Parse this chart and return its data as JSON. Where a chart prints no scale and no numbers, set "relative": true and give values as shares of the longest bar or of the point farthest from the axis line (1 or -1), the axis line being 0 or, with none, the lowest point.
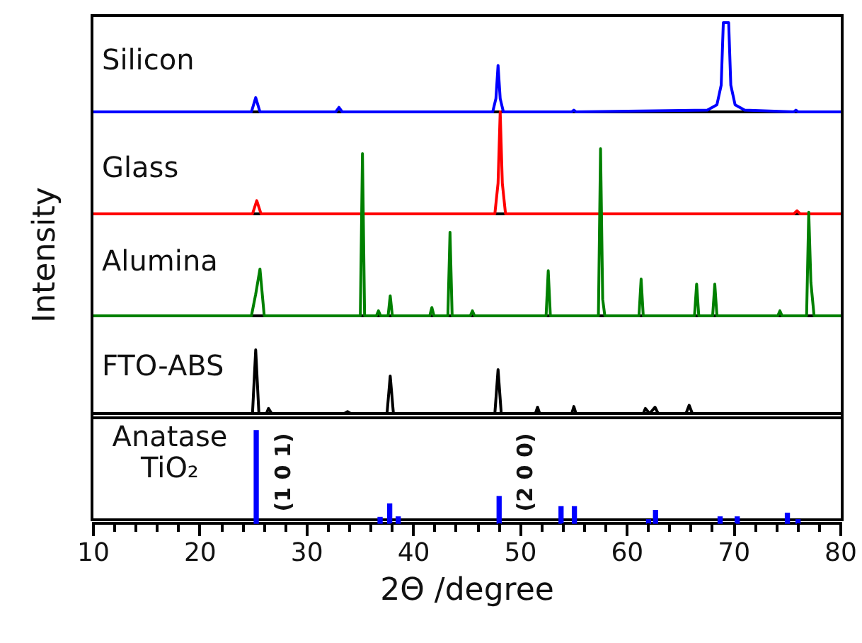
{
  "chart_data": [
    {
      "type": "line",
      "relative": true,
      "tick_labels": false,
      "xlim": [
        10,
        80
      ],
      "series": [
        {
          "name": "Silicon",
          "color": "#0000ff",
          "x": [
            10,
            24.8,
            25.2,
            25.6,
            32.7,
            33.0,
            33.3,
            47.4,
            47.7,
            47.9,
            48.1,
            48.4,
            54.8,
            55.0,
            55.2,
            67.5,
            68.4,
            68.8,
            69.0,
            69.5,
            69.7,
            70.1,
            71.0,
            75.6,
            75.8,
            76.0,
            80
          ],
          "values": [
            0,
            0,
            0.16,
            0,
            0,
            0.05,
            0,
            0,
            0.15,
            0.52,
            0.15,
            0,
            0,
            0.02,
            0,
            0.02,
            0.08,
            0.3,
            1,
            1,
            0.3,
            0.08,
            0.02,
            0,
            0.02,
            0,
            0
          ]
        }
      ]
    },
    {
      "type": "line",
      "relative": true,
      "tick_labels": false,
      "xlim": [
        10,
        80
      ],
      "series": [
        {
          "name": "Glass",
          "color": "#ff0000",
          "x": [
            10,
            24.9,
            25.3,
            25.7,
            47.6,
            47.9,
            48.1,
            48.3,
            48.6,
            75.6,
            75.9,
            76.2,
            80
          ],
          "values": [
            0,
            0,
            0.13,
            0,
            0,
            0.3,
            1,
            0.3,
            0,
            0,
            0.03,
            0,
            0
          ]
        }
      ]
    },
    {
      "type": "line",
      "relative": true,
      "tick_labels": false,
      "xlim": [
        10,
        80
      ],
      "ylabel": "Intensity",
      "series": [
        {
          "name": "Alumina",
          "color": "#008000",
          "x": [
            10,
            24.8,
            25.2,
            25.6,
            26.0,
            35.0,
            35.2,
            35.4,
            36.5,
            36.7,
            36.9,
            37.6,
            37.8,
            38.0,
            41.5,
            41.7,
            41.9,
            43.2,
            43.4,
            43.6,
            45.3,
            45.5,
            45.7,
            52.4,
            52.6,
            52.8,
            57.3,
            57.5,
            57.7,
            57.9,
            61.1,
            61.3,
            61.5,
            66.3,
            66.5,
            66.7,
            68.0,
            68.2,
            68.4,
            74.1,
            74.3,
            74.5,
            76.8,
            77.0,
            77.2,
            77.5,
            80
          ],
          "values": [
            0,
            0,
            0.13,
            0.28,
            0,
            0,
            0.97,
            0,
            0,
            0.03,
            0,
            0,
            0.12,
            0,
            0,
            0.05,
            0,
            0,
            0.5,
            0,
            0,
            0.03,
            0,
            0,
            0.27,
            0,
            0,
            1,
            0.1,
            0,
            0,
            0.22,
            0,
            0,
            0.19,
            0,
            0,
            0.19,
            0,
            0,
            0.03,
            0,
            0,
            0.62,
            0.2,
            0,
            0
          ]
        }
      ]
    },
    {
      "type": "line",
      "relative": true,
      "tick_labels": false,
      "xlim": [
        10,
        80
      ],
      "series": [
        {
          "name": "FTO-ABS",
          "color": "#000000",
          "x": [
            10,
            24.9,
            25.2,
            25.5,
            26.2,
            26.4,
            26.7,
            33.5,
            33.8,
            34.1,
            37.5,
            37.8,
            38.1,
            47.6,
            47.9,
            48.2,
            51.4,
            51.6,
            51.8,
            54.8,
            55.0,
            55.2,
            61.5,
            61.7,
            62.1,
            62.6,
            62.9,
            65.5,
            65.8,
            66.1,
            80
          ],
          "values": [
            0,
            0,
            1,
            0,
            0,
            0.08,
            0,
            0,
            0.03,
            0,
            0,
            0.59,
            0,
            0,
            0.69,
            0,
            0,
            0.1,
            0,
            0,
            0.11,
            0,
            0,
            0.08,
            0,
            0.1,
            0,
            0,
            0.13,
            0,
            0
          ]
        }
      ]
    },
    {
      "type": "bar",
      "relative": true,
      "tick_labels": "x",
      "xlim": [
        10,
        80
      ],
      "xlabel": "2Θ /degree",
      "xticks": [
        10,
        {
          "value": 12,
          "label": null
        },
        {
          "value": 14,
          "label": null
        },
        {
          "value": 16,
          "label": null
        },
        {
          "value": 18,
          "label": null
        },
        20,
        {
          "value": 22,
          "label": null
        },
        {
          "value": 24,
          "label": null
        },
        {
          "value": 26,
          "label": null
        },
        {
          "value": 28,
          "label": null
        },
        30,
        {
          "value": 32,
          "label": null
        },
        {
          "value": 34,
          "label": null
        },
        {
          "value": 36,
          "label": null
        },
        {
          "value": 38,
          "label": null
        },
        40,
        {
          "value": 42,
          "label": null
        },
        {
          "value": 44,
          "label": null
        },
        {
          "value": 46,
          "label": null
        },
        {
          "value": 48,
          "label": null
        },
        50,
        {
          "value": 52,
          "label": null
        },
        {
          "value": 54,
          "label": null
        },
        {
          "value": 56,
          "label": null
        },
        {
          "value": 58,
          "label": null
        },
        60,
        {
          "value": 62,
          "label": null
        },
        {
          "value": 64,
          "label": null
        },
        {
          "value": 66,
          "label": null
        },
        {
          "value": 68,
          "label": null
        },
        70,
        {
          "value": 72,
          "label": null
        },
        {
          "value": 74,
          "label": null
        },
        {
          "value": 76,
          "label": null
        },
        {
          "value": 78,
          "label": null
        },
        80
      ],
      "annotations": [
        "(1 0 1)",
        "(2 0 0)"
      ],
      "series": [
        {
          "name": "Anatase TiO₂",
          "color": "#0000ff",
          "x": [
            25.25,
            36.85,
            37.75,
            38.55,
            48.0,
            53.8,
            55.05,
            62.0,
            62.65,
            68.7,
            70.3,
            75.0,
            76.0
          ],
          "values": [
            1,
            0.065,
            0.21,
            0.07,
            0.29,
            0.18,
            0.18,
            0.04,
            0.14,
            0.07,
            0.07,
            0.11,
            0.04
          ]
        }
      ]
    }
  ]
}
